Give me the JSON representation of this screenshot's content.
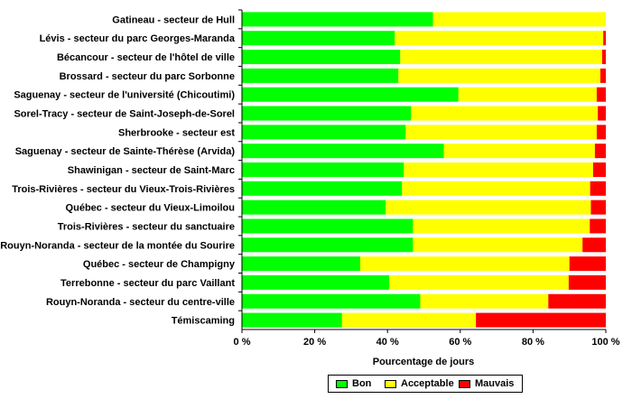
{
  "chart_data": {
    "type": "bar",
    "orientation": "horizontal",
    "stacked": true,
    "categories": [
      "Gatineau - secteur de Hull",
      "Lévis - secteur du parc Georges-Maranda",
      "Bécancour - secteur de l'hôtel de ville",
      "Brossard - secteur du parc Sorbonne",
      "Saguenay - secteur de l'université (Chicoutimi)",
      "Sorel-Tracy - secteur de Saint-Joseph-de-Sorel",
      "Sherbrooke - secteur est",
      "Saguenay - secteur de Sainte-Thérèse (Arvida)",
      "Shawinigan - secteur de Saint-Marc",
      "Trois-Rivières - secteur du Vieux-Trois-Rivières",
      "Québec - secteur du Vieux-Limoilou",
      "Trois-Rivières - secteur du sanctuaire",
      "Rouyn-Noranda - secteur de la montée du Sourire",
      "Québec - secteur de Champigny",
      "Terrebonne - secteur du parc Vaillant",
      "Rouyn-Noranda - secteur du centre-ville",
      "Témiscaming"
    ],
    "series": [
      {
        "name": "Bon",
        "color": "#00ff00",
        "values": [
          52.5,
          42,
          43.5,
          43,
          59.5,
          46.5,
          45,
          55.5,
          44.5,
          44,
          39.5,
          47,
          47,
          32.5,
          40.5,
          49,
          27.5
        ]
      },
      {
        "name": "Acceptable",
        "color": "#ffff00",
        "values": [
          47.5,
          57.3,
          55.5,
          55.5,
          38,
          51.3,
          52.5,
          41.5,
          52,
          51.7,
          56.4,
          48.6,
          46.6,
          57.5,
          49.3,
          35.2,
          36.8
        ]
      },
      {
        "name": "Mauvais",
        "color": "#ff0000",
        "values": [
          0,
          0.7,
          1,
          1.5,
          2.5,
          2.2,
          2.5,
          3,
          3.5,
          4.3,
          4.1,
          4.4,
          6.4,
          10,
          10.2,
          15.8,
          35.7
        ]
      }
    ],
    "xlabel": "Pourcentage de jours",
    "ylabel": "",
    "xlim": [
      0,
      100
    ],
    "xticks": [
      "0 %",
      "20 %",
      "40 %",
      "60 %",
      "80 %",
      "100 %"
    ],
    "grid": false,
    "legend": {
      "position": "bottom",
      "entries": [
        "Bon",
        "Acceptable",
        "Mauvais"
      ]
    }
  }
}
